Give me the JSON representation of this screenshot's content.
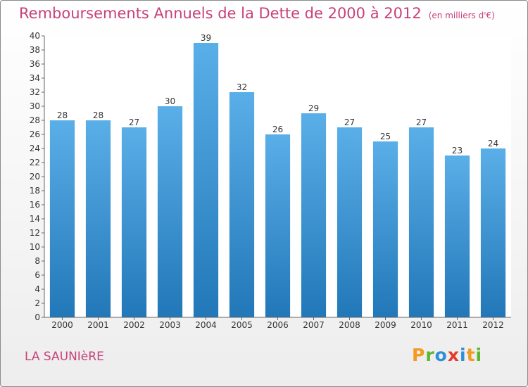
{
  "header": {
    "title": "Remboursements Annuels de la Dette de 2000 à 2012",
    "unit": "(en milliers d'€)"
  },
  "footer": {
    "commune": "LA SAUNIèRE",
    "logo_letters": [
      "P",
      "r",
      "o",
      "x",
      "i",
      "t",
      "i"
    ],
    "logo_colors": [
      "#f39a1f",
      "#5bb630",
      "#2f8fd8",
      "#e63a2a",
      "#2f8fd8",
      "#f39a1f",
      "#5bb630"
    ]
  },
  "colors": {
    "bar_top": "#5aafe8",
    "bar_bottom": "#2277b8",
    "title": "#c8407a"
  },
  "chart_data": {
    "type": "bar",
    "title": "Remboursements Annuels de la Dette de 2000 à 2012",
    "subtitle": "(en milliers d'€)",
    "categories": [
      "2000",
      "2001",
      "2002",
      "2003",
      "2004",
      "2005",
      "2006",
      "2007",
      "2008",
      "2009",
      "2010",
      "2011",
      "2012"
    ],
    "values": [
      28,
      28,
      27,
      30,
      39,
      32,
      26,
      29,
      27,
      25,
      27,
      23,
      24
    ],
    "ylim": [
      0,
      40
    ],
    "yticks": [
      0,
      2,
      4,
      6,
      8,
      10,
      12,
      14,
      16,
      18,
      20,
      22,
      24,
      26,
      28,
      30,
      32,
      34,
      36,
      38,
      40
    ],
    "grid": false,
    "data_labels": true
  }
}
